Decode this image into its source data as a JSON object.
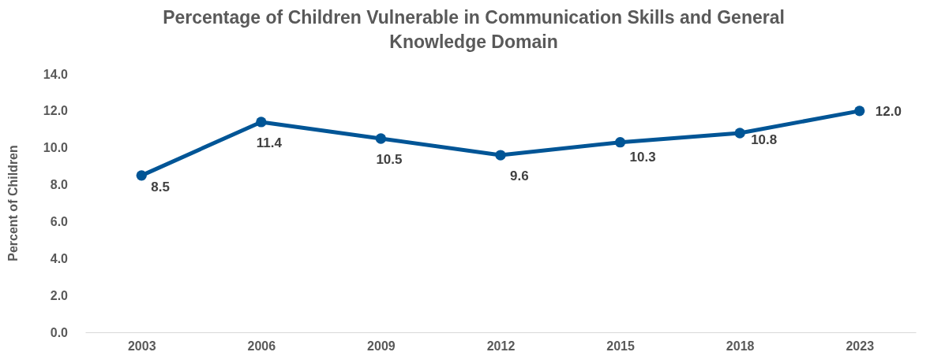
{
  "chart_data": {
    "type": "line",
    "title": "Percentage of Children Vulnerable in Communication Skills and General Knowledge  Domain",
    "ylabel": "Percent of Children",
    "categories": [
      "2003",
      "2006",
      "2009",
      "2012",
      "2015",
      "2018",
      "2023"
    ],
    "series": [
      {
        "color": "#005596",
        "values": [
          8.5,
          11.4,
          10.5,
          9.6,
          10.3,
          10.8,
          12.0
        ]
      }
    ],
    "value_labels": [
      "8.5",
      "11.4",
      "10.5",
      "9.6",
      "10.3",
      "10.8",
      "12.0"
    ],
    "ylim": [
      0,
      14
    ],
    "yticks": [
      {
        "value": 0,
        "label": "0.0"
      },
      {
        "value": 2,
        "label": "2.0"
      },
      {
        "value": 4,
        "label": "4.0"
      },
      {
        "value": 6,
        "label": "6.0"
      },
      {
        "value": 8,
        "label": "8.0"
      },
      {
        "value": 10,
        "label": "10.0"
      },
      {
        "value": 12,
        "label": "12.0"
      },
      {
        "value": 14,
        "label": "14.0"
      }
    ],
    "grid": false,
    "marker": "circle",
    "line_style": "solid"
  }
}
